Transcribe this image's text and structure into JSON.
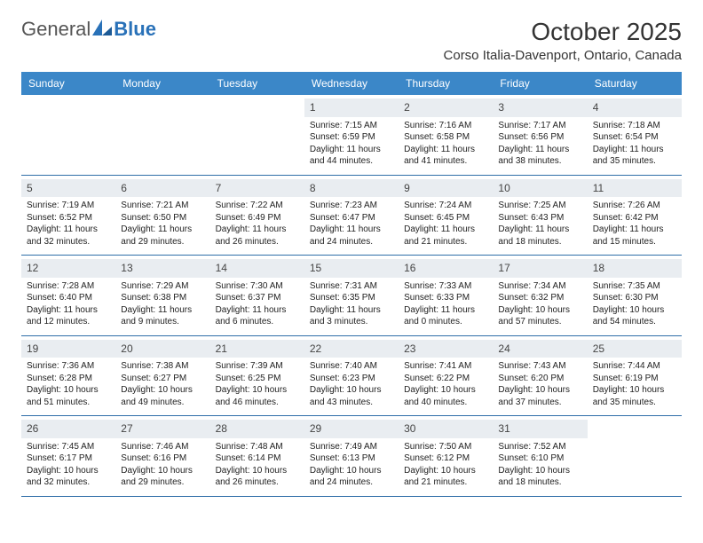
{
  "colors": {
    "header_bg": "#3b87c8",
    "header_text": "#ffffff",
    "daynum_bg": "#e9edf1",
    "border": "#2f6ea8",
    "logo_gray": "#555555",
    "logo_blue": "#2971b8",
    "body_text": "#222222",
    "page_bg": "#ffffff"
  },
  "logo": {
    "text1": "General",
    "text2": "Blue"
  },
  "title": "October 2025",
  "location": "Corso Italia-Davenport, Ontario, Canada",
  "dow": [
    "Sunday",
    "Monday",
    "Tuesday",
    "Wednesday",
    "Thursday",
    "Friday",
    "Saturday"
  ],
  "weeks": [
    [
      {
        "n": "",
        "sr": "",
        "ss": "",
        "dl1": "",
        "dl2": ""
      },
      {
        "n": "",
        "sr": "",
        "ss": "",
        "dl1": "",
        "dl2": ""
      },
      {
        "n": "",
        "sr": "",
        "ss": "",
        "dl1": "",
        "dl2": ""
      },
      {
        "n": "1",
        "sr": "Sunrise: 7:15 AM",
        "ss": "Sunset: 6:59 PM",
        "dl1": "Daylight: 11 hours",
        "dl2": "and 44 minutes."
      },
      {
        "n": "2",
        "sr": "Sunrise: 7:16 AM",
        "ss": "Sunset: 6:58 PM",
        "dl1": "Daylight: 11 hours",
        "dl2": "and 41 minutes."
      },
      {
        "n": "3",
        "sr": "Sunrise: 7:17 AM",
        "ss": "Sunset: 6:56 PM",
        "dl1": "Daylight: 11 hours",
        "dl2": "and 38 minutes."
      },
      {
        "n": "4",
        "sr": "Sunrise: 7:18 AM",
        "ss": "Sunset: 6:54 PM",
        "dl1": "Daylight: 11 hours",
        "dl2": "and 35 minutes."
      }
    ],
    [
      {
        "n": "5",
        "sr": "Sunrise: 7:19 AM",
        "ss": "Sunset: 6:52 PM",
        "dl1": "Daylight: 11 hours",
        "dl2": "and 32 minutes."
      },
      {
        "n": "6",
        "sr": "Sunrise: 7:21 AM",
        "ss": "Sunset: 6:50 PM",
        "dl1": "Daylight: 11 hours",
        "dl2": "and 29 minutes."
      },
      {
        "n": "7",
        "sr": "Sunrise: 7:22 AM",
        "ss": "Sunset: 6:49 PM",
        "dl1": "Daylight: 11 hours",
        "dl2": "and 26 minutes."
      },
      {
        "n": "8",
        "sr": "Sunrise: 7:23 AM",
        "ss": "Sunset: 6:47 PM",
        "dl1": "Daylight: 11 hours",
        "dl2": "and 24 minutes."
      },
      {
        "n": "9",
        "sr": "Sunrise: 7:24 AM",
        "ss": "Sunset: 6:45 PM",
        "dl1": "Daylight: 11 hours",
        "dl2": "and 21 minutes."
      },
      {
        "n": "10",
        "sr": "Sunrise: 7:25 AM",
        "ss": "Sunset: 6:43 PM",
        "dl1": "Daylight: 11 hours",
        "dl2": "and 18 minutes."
      },
      {
        "n": "11",
        "sr": "Sunrise: 7:26 AM",
        "ss": "Sunset: 6:42 PM",
        "dl1": "Daylight: 11 hours",
        "dl2": "and 15 minutes."
      }
    ],
    [
      {
        "n": "12",
        "sr": "Sunrise: 7:28 AM",
        "ss": "Sunset: 6:40 PM",
        "dl1": "Daylight: 11 hours",
        "dl2": "and 12 minutes."
      },
      {
        "n": "13",
        "sr": "Sunrise: 7:29 AM",
        "ss": "Sunset: 6:38 PM",
        "dl1": "Daylight: 11 hours",
        "dl2": "and 9 minutes."
      },
      {
        "n": "14",
        "sr": "Sunrise: 7:30 AM",
        "ss": "Sunset: 6:37 PM",
        "dl1": "Daylight: 11 hours",
        "dl2": "and 6 minutes."
      },
      {
        "n": "15",
        "sr": "Sunrise: 7:31 AM",
        "ss": "Sunset: 6:35 PM",
        "dl1": "Daylight: 11 hours",
        "dl2": "and 3 minutes."
      },
      {
        "n": "16",
        "sr": "Sunrise: 7:33 AM",
        "ss": "Sunset: 6:33 PM",
        "dl1": "Daylight: 11 hours",
        "dl2": "and 0 minutes."
      },
      {
        "n": "17",
        "sr": "Sunrise: 7:34 AM",
        "ss": "Sunset: 6:32 PM",
        "dl1": "Daylight: 10 hours",
        "dl2": "and 57 minutes."
      },
      {
        "n": "18",
        "sr": "Sunrise: 7:35 AM",
        "ss": "Sunset: 6:30 PM",
        "dl1": "Daylight: 10 hours",
        "dl2": "and 54 minutes."
      }
    ],
    [
      {
        "n": "19",
        "sr": "Sunrise: 7:36 AM",
        "ss": "Sunset: 6:28 PM",
        "dl1": "Daylight: 10 hours",
        "dl2": "and 51 minutes."
      },
      {
        "n": "20",
        "sr": "Sunrise: 7:38 AM",
        "ss": "Sunset: 6:27 PM",
        "dl1": "Daylight: 10 hours",
        "dl2": "and 49 minutes."
      },
      {
        "n": "21",
        "sr": "Sunrise: 7:39 AM",
        "ss": "Sunset: 6:25 PM",
        "dl1": "Daylight: 10 hours",
        "dl2": "and 46 minutes."
      },
      {
        "n": "22",
        "sr": "Sunrise: 7:40 AM",
        "ss": "Sunset: 6:23 PM",
        "dl1": "Daylight: 10 hours",
        "dl2": "and 43 minutes."
      },
      {
        "n": "23",
        "sr": "Sunrise: 7:41 AM",
        "ss": "Sunset: 6:22 PM",
        "dl1": "Daylight: 10 hours",
        "dl2": "and 40 minutes."
      },
      {
        "n": "24",
        "sr": "Sunrise: 7:43 AM",
        "ss": "Sunset: 6:20 PM",
        "dl1": "Daylight: 10 hours",
        "dl2": "and 37 minutes."
      },
      {
        "n": "25",
        "sr": "Sunrise: 7:44 AM",
        "ss": "Sunset: 6:19 PM",
        "dl1": "Daylight: 10 hours",
        "dl2": "and 35 minutes."
      }
    ],
    [
      {
        "n": "26",
        "sr": "Sunrise: 7:45 AM",
        "ss": "Sunset: 6:17 PM",
        "dl1": "Daylight: 10 hours",
        "dl2": "and 32 minutes."
      },
      {
        "n": "27",
        "sr": "Sunrise: 7:46 AM",
        "ss": "Sunset: 6:16 PM",
        "dl1": "Daylight: 10 hours",
        "dl2": "and 29 minutes."
      },
      {
        "n": "28",
        "sr": "Sunrise: 7:48 AM",
        "ss": "Sunset: 6:14 PM",
        "dl1": "Daylight: 10 hours",
        "dl2": "and 26 minutes."
      },
      {
        "n": "29",
        "sr": "Sunrise: 7:49 AM",
        "ss": "Sunset: 6:13 PM",
        "dl1": "Daylight: 10 hours",
        "dl2": "and 24 minutes."
      },
      {
        "n": "30",
        "sr": "Sunrise: 7:50 AM",
        "ss": "Sunset: 6:12 PM",
        "dl1": "Daylight: 10 hours",
        "dl2": "and 21 minutes."
      },
      {
        "n": "31",
        "sr": "Sunrise: 7:52 AM",
        "ss": "Sunset: 6:10 PM",
        "dl1": "Daylight: 10 hours",
        "dl2": "and 18 minutes."
      },
      {
        "n": "",
        "sr": "",
        "ss": "",
        "dl1": "",
        "dl2": ""
      }
    ]
  ]
}
